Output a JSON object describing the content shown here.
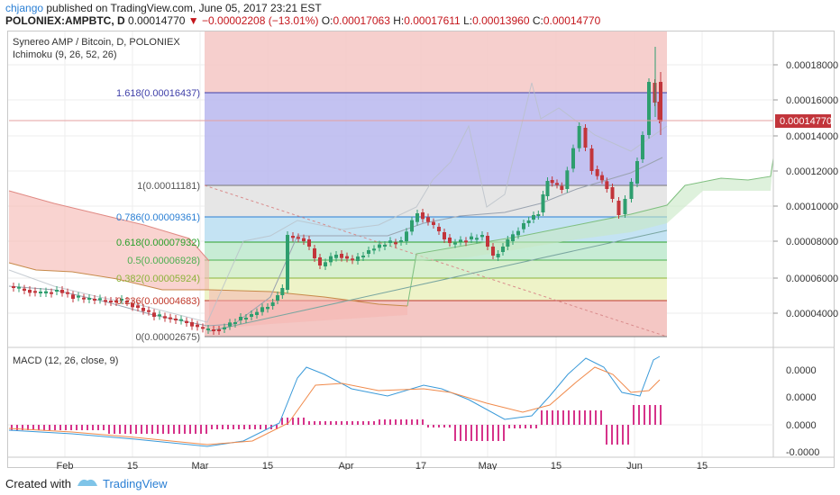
{
  "header": {
    "user": "chjango",
    "published_text": " published on TradingView.com, June 05, 2017 23:21 EST",
    "symbol_text": "POLONIEX:AMPBTC, D",
    "last_price": "0.00014770",
    "change_arrow": "▼",
    "change_text": "−0.00002208 (−13.01%)",
    "open_label": "O:",
    "open_value": "0.00017063",
    "high_label": "H:",
    "high_value": "0.00017611",
    "low_label": "L:",
    "low_value": "0.00013960",
    "close_label": "C:",
    "close_value": "0.00014770"
  },
  "legend": {
    "title": "Synereo AMP / Bitcoin, D, POLONIEX",
    "ichimoku": "Ichimoku (9, 26, 52, 26)",
    "macd": "MACD (12, 26, close, 9)"
  },
  "price_axis": {
    "ticks": [
      "0.00018000",
      "0.00016000",
      "0.00014000",
      "0.00012000",
      "0.00010000",
      "0.00008000",
      "0.00006000",
      "0.00004000"
    ],
    "last_price_label": "0.00014770"
  },
  "macd_axis": {
    "ticks": [
      "0.0000",
      "0.0000",
      "0.0000",
      "-0.0000"
    ]
  },
  "time_axis": {
    "ticks": [
      "Feb",
      "15",
      "Mar",
      "15",
      "Apr",
      "17",
      "May",
      "15",
      "Jun",
      "15"
    ]
  },
  "fib_levels": [
    {
      "label": "1.618(0.00016437)",
      "color": "#3f3fa8"
    },
    {
      "label": "1(0.00011181)",
      "color": "#555555"
    },
    {
      "label": "0.786(0.00009361)",
      "color": "#2a7fd4"
    },
    {
      "label": "0.618(0.00007932)",
      "color": "#2ca02c"
    },
    {
      "label": "0.5(0.00006928)",
      "color": "#4caf50"
    },
    {
      "label": "0.382(0.00005924)",
      "color": "#8db33a"
    },
    {
      "label": "0.236(0.00004683)",
      "color": "#c0392b"
    },
    {
      "label": "0(0.00002675)",
      "color": "#555555"
    }
  ],
  "footer": {
    "created_with": "Created with",
    "brand": "TradingView"
  },
  "colors": {
    "up": "#2e9e6e",
    "down": "#c2353b",
    "macd_line": "#3a9ad9",
    "signal_line": "#f08a4b",
    "hist": "#d6338a",
    "last_price_bg": "#c2353b"
  },
  "chart_data": {
    "type": "candlestick",
    "series": [
      {
        "name": "Synereo AMP / Bitcoin, D, POLONIEX",
        "dates": [
          "2017-01-20",
          "2017-06-05"
        ]
      }
    ],
    "last_close": 0.0001477,
    "fib_retracement": [
      0.00016437,
      0.00011181,
      9.361e-05,
      7.932e-05,
      6.928e-05,
      5.924e-05,
      4.683e-05,
      2.675e-05
    ],
    "price_range": [
      2.4e-05,
      0.00019
    ],
    "grid": true
  }
}
